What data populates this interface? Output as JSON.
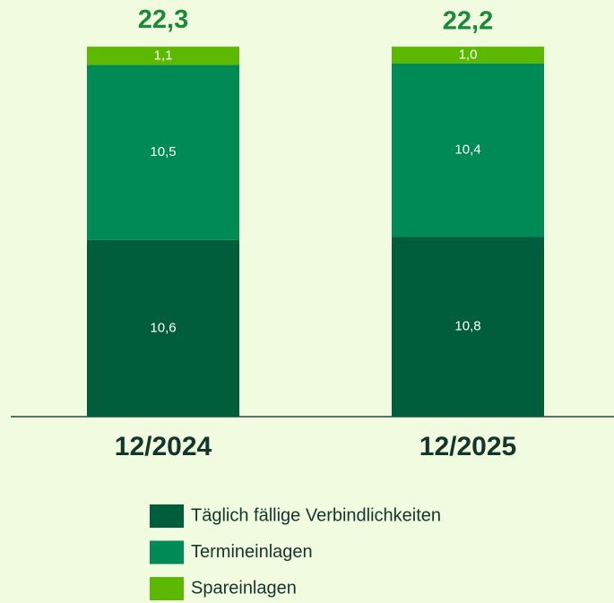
{
  "chart_data": {
    "type": "stacked_bar",
    "categories": [
      "12/2024",
      "12/2025"
    ],
    "series": [
      {
        "name": "Täglich fällige Verbindlichkeiten",
        "color": "#005e3c",
        "values": [
          10.6,
          10.8
        ],
        "value_labels": [
          "10,6",
          "10,8"
        ]
      },
      {
        "name": "Termineinlagen",
        "color": "#008a55",
        "values": [
          10.5,
          10.4
        ],
        "value_labels": [
          "10,5",
          "10,4"
        ]
      },
      {
        "name": "Spareinlagen",
        "color": "#5cb800",
        "values": [
          1.1,
          1.0
        ],
        "value_labels": [
          "1,1",
          "1,0"
        ]
      }
    ],
    "totals": [
      22.3,
      22.2
    ],
    "total_labels": [
      "22,3",
      "22,2"
    ]
  }
}
